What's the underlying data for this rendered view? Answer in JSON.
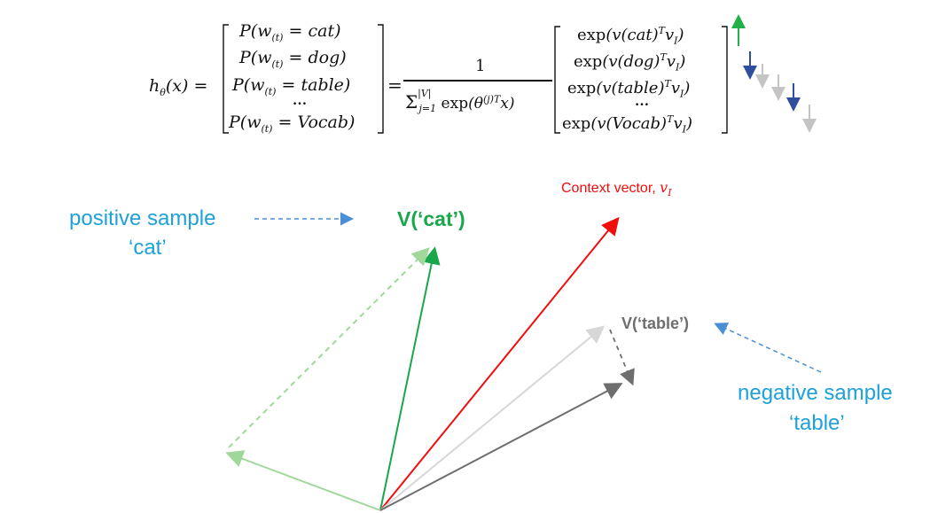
{
  "equation": {
    "lhs": "h_θ(x) =",
    "equals": "=",
    "probability_vector": [
      "P(w(t) = cat)",
      "P(w(t) = dog)",
      "P(w(t) = table)",
      "...",
      "P(w(t) = Vocab)"
    ],
    "normalizer_numerator": "1",
    "normalizer_denominator": "Σ_{j=1}^{|V|} exp(θ^(j)T x)",
    "exp_vector": [
      "exp(v(cat)^T v_I)",
      "exp(v(dog)^T v_I)",
      "exp(v(table)^T v_I)",
      "...",
      "exp(v(Vocab)^T v_I)"
    ]
  },
  "labels": {
    "context_vector": "Context vector, v_I",
    "v_cat": "V(‘cat’)",
    "v_table": "V(‘table’)",
    "positive_sample_line1": "positive sample",
    "positive_sample_line2": "‘cat’",
    "negative_sample_line1": "negative sample",
    "negative_sample_line2": "‘table’"
  },
  "colors": {
    "context_vector": "#f20d0d",
    "cat": "#1aa64a",
    "cat_light": "#9fd89a",
    "table": "#6e6e6e",
    "table_light": "#d7d7d7",
    "sample_text": "#1ea0d8",
    "dashed_arrow": "#4a8fd6",
    "down_arrow": "#2f4f9e",
    "up_arrow": "#22b04b",
    "grey_arrow": "#c4c4c4"
  }
}
